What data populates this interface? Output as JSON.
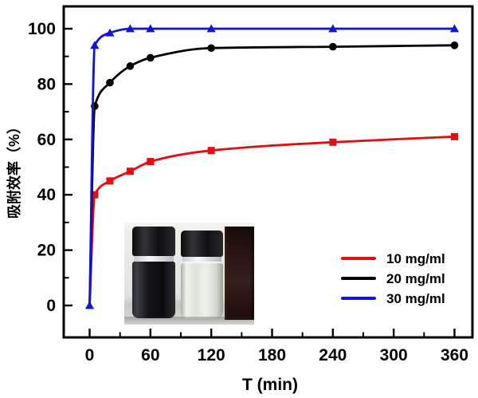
{
  "chart_data": {
    "type": "line",
    "title": "",
    "xlabel": "T (min)",
    "ylabel": "吸附效率（%）",
    "xlim": [
      -25,
      378
    ],
    "ylim": [
      -12,
      108
    ],
    "x_ticks": [
      0,
      60,
      120,
      180,
      240,
      300,
      360
    ],
    "y_ticks": [
      0,
      20,
      40,
      60,
      80,
      100
    ],
    "x_minor_ticks": [
      30,
      90,
      150,
      210,
      270,
      330
    ],
    "y_minor_ticks": [
      10,
      30,
      50,
      70,
      90
    ],
    "grid": false,
    "legend_position": "lower right",
    "series": [
      {
        "name": "10 mg/ml",
        "color": "#e60d12",
        "marker": "square",
        "x": [
          0,
          5,
          20,
          40,
          60,
          120,
          240,
          360
        ],
        "y": [
          0,
          40,
          45,
          48.5,
          52,
          56,
          59,
          61
        ]
      },
      {
        "name": "20 mg/ml",
        "color": "#000000",
        "marker": "circle",
        "x": [
          0,
          5,
          20,
          40,
          60,
          120,
          240,
          360
        ],
        "y": [
          0,
          72,
          80.5,
          86.5,
          89.5,
          93,
          93.5,
          94
        ]
      },
      {
        "name": "30 mg/ml",
        "color": "#1414d6",
        "marker": "triangle",
        "x": [
          0,
          5,
          20,
          40,
          60,
          120,
          240,
          360
        ],
        "y": [
          0,
          94,
          98.5,
          100,
          100,
          100,
          100,
          100
        ]
      }
    ]
  },
  "inset": {
    "type": "photo",
    "items": [
      "vial-with-dark-suspension",
      "vial-with-clear-solution",
      "dark-adsorbent-block"
    ]
  },
  "colors": {
    "axis": "#000000",
    "background": "#ffffff"
  }
}
